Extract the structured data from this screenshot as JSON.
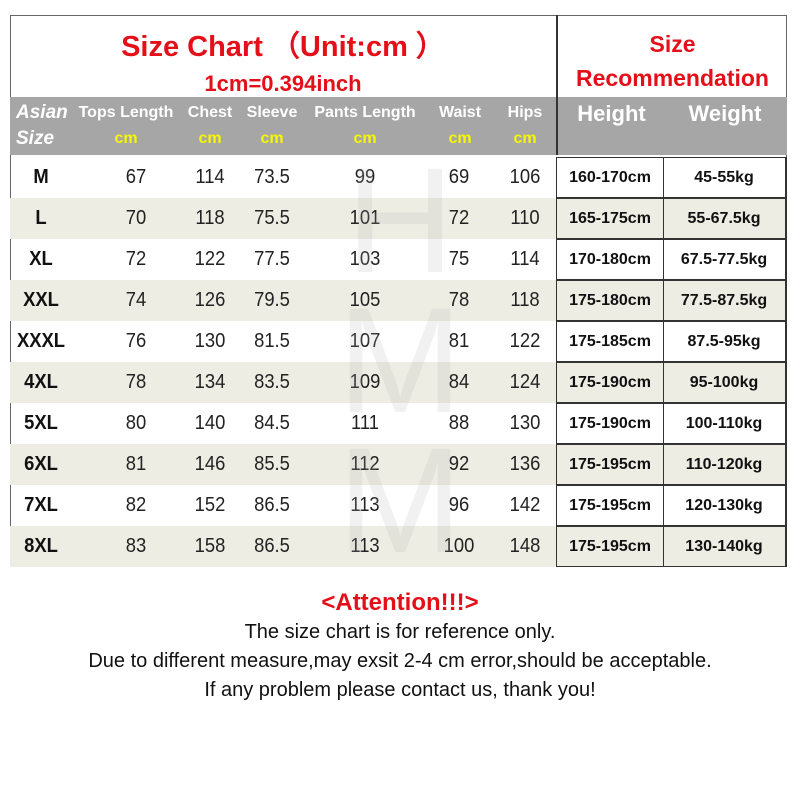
{
  "title": "Size Chart （Unit:cm ）",
  "subtitle": "1cm=0.394inch",
  "recommendation_title": [
    "Size",
    "Recommendation"
  ],
  "headers": {
    "size": [
      "Asian",
      "Size"
    ],
    "columns": [
      "Tops Length",
      "Chest",
      "Sleeve",
      "Pants Length",
      "Waist",
      "Hips"
    ],
    "unit": "cm",
    "height": "Height",
    "weight": "Weight"
  },
  "rows": [
    {
      "size": "M",
      "tops": "67",
      "chest": "114",
      "sleeve": "73.5",
      "pants": "99",
      "waist": "69",
      "hips": "106",
      "height": "160-170cm",
      "weight": "45-55kg"
    },
    {
      "size": "L",
      "tops": "70",
      "chest": "118",
      "sleeve": "75.5",
      "pants": "101",
      "waist": "72",
      "hips": "110",
      "height": "165-175cm",
      "weight": "55-67.5kg"
    },
    {
      "size": "XL",
      "tops": "72",
      "chest": "122",
      "sleeve": "77.5",
      "pants": "103",
      "waist": "75",
      "hips": "114",
      "height": "170-180cm",
      "weight": "67.5-77.5kg"
    },
    {
      "size": "XXL",
      "tops": "74",
      "chest": "126",
      "sleeve": "79.5",
      "pants": "105",
      "waist": "78",
      "hips": "118",
      "height": "175-180cm",
      "weight": "77.5-87.5kg"
    },
    {
      "size": "XXXL",
      "tops": "76",
      "chest": "130",
      "sleeve": "81.5",
      "pants": "107",
      "waist": "81",
      "hips": "122",
      "height": "175-185cm",
      "weight": "87.5-95kg"
    },
    {
      "size": "4XL",
      "tops": "78",
      "chest": "134",
      "sleeve": "83.5",
      "pants": "109",
      "waist": "84",
      "hips": "124",
      "height": "175-190cm",
      "weight": "95-100kg"
    },
    {
      "size": "5XL",
      "tops": "80",
      "chest": "140",
      "sleeve": "84.5",
      "pants": "111",
      "waist": "88",
      "hips": "130",
      "height": "175-190cm",
      "weight": "100-110kg"
    },
    {
      "size": "6XL",
      "tops": "81",
      "chest": "146",
      "sleeve": "85.5",
      "pants": "112",
      "waist": "92",
      "hips": "136",
      "height": "175-195cm",
      "weight": "110-120kg"
    },
    {
      "size": "7XL",
      "tops": "82",
      "chest": "152",
      "sleeve": "86.5",
      "pants": "113",
      "waist": "96",
      "hips": "142",
      "height": "175-195cm",
      "weight": "120-130kg"
    },
    {
      "size": "8XL",
      "tops": "83",
      "chest": "158",
      "sleeve": "86.5",
      "pants": "113",
      "waist": "100",
      "hips": "148",
      "height": "175-195cm",
      "weight": "130-140kg"
    }
  ],
  "colors": {
    "accent_red": "#e3101a",
    "header_gray": "#a6a6a6",
    "unit_yellow": "#f7f700",
    "row_beige": "#eeede3"
  },
  "watermark": "Hey MO MO",
  "notes": {
    "attention": "<Attention!!!>",
    "lines": [
      "The size chart is for reference only.",
      "Due to different measure,may exsit 2-4 cm error,should be acceptable.",
      "If any problem please contact us, thank you!"
    ]
  }
}
